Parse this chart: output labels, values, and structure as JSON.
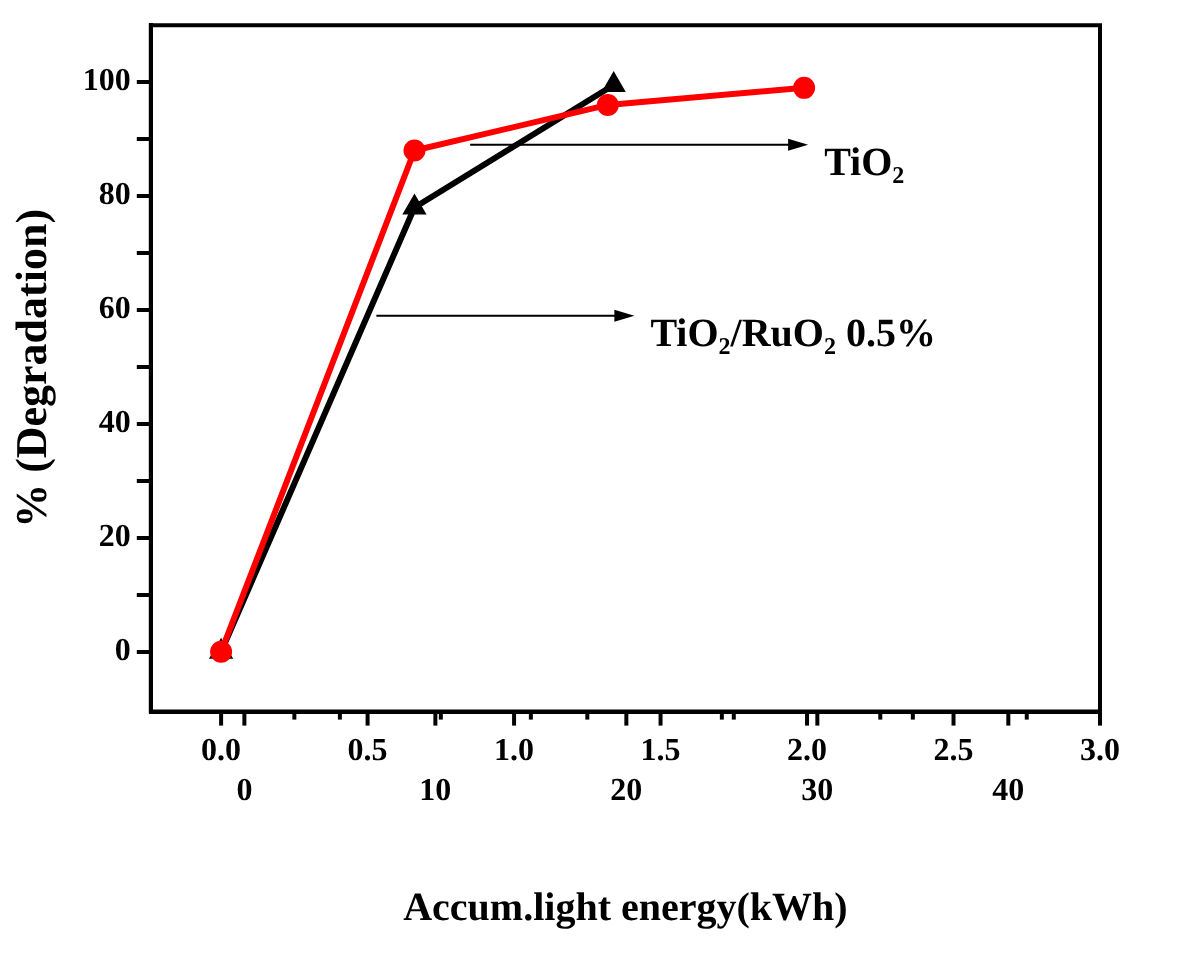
{
  "chart_data": {
    "type": "line",
    "xlabel": "Accum.light energy(kWh)",
    "ylabel": "% (Degradation)",
    "xlim": [
      -0.24,
      3.0
    ],
    "xticks": [
      {
        "value": 0,
        "label": "0.0"
      },
      {
        "value": 0.25,
        "label": null
      },
      0.5,
      {
        "value": 0.75,
        "label": null
      },
      {
        "value": 1,
        "label": "1.0"
      },
      {
        "value": 1.25,
        "label": null
      },
      1.5,
      {
        "value": 1.75,
        "label": null
      },
      {
        "value": 2,
        "label": "2.0"
      },
      {
        "value": 2.25,
        "label": null
      },
      2.5,
      {
        "value": 2.75,
        "label": null
      },
      {
        "value": 3,
        "label": "3.0"
      }
    ],
    "x2lim": [
      -4.9,
      44.8
    ],
    "x2ticks": [
      0,
      {
        "value": 5,
        "label": null
      },
      10,
      {
        "value": 15,
        "label": null
      },
      20,
      {
        "value": 25,
        "label": null
      },
      30,
      {
        "value": 35,
        "label": null
      },
      40
    ],
    "ylim": [
      -10.5,
      110
    ],
    "yticks": [
      0,
      {
        "value": 10,
        "label": null
      },
      20,
      {
        "value": 30,
        "label": null
      },
      40,
      {
        "value": 50,
        "label": null
      },
      60,
      {
        "value": 70,
        "label": null
      },
      80,
      {
        "value": 90,
        "label": null
      },
      100
    ],
    "grid": false,
    "annotations": [
      {
        "text": "TiO₂",
        "x": 0.85,
        "y": 89
      },
      {
        "text": "TiO₂/RuO₂ 0.5%",
        "x": 0.53,
        "y": 59
      }
    ],
    "series": [
      {
        "color": "#ff0000",
        "marker": "circle",
        "x": [
          0,
          0.66,
          1.32,
          1.99
        ],
        "values": [
          0,
          88,
          96,
          99
        ]
      },
      {
        "color": "#000000",
        "marker": "triangle",
        "x": [
          0,
          0.66,
          1.34
        ],
        "values": [
          0,
          78,
          99.5
        ]
      }
    ]
  }
}
